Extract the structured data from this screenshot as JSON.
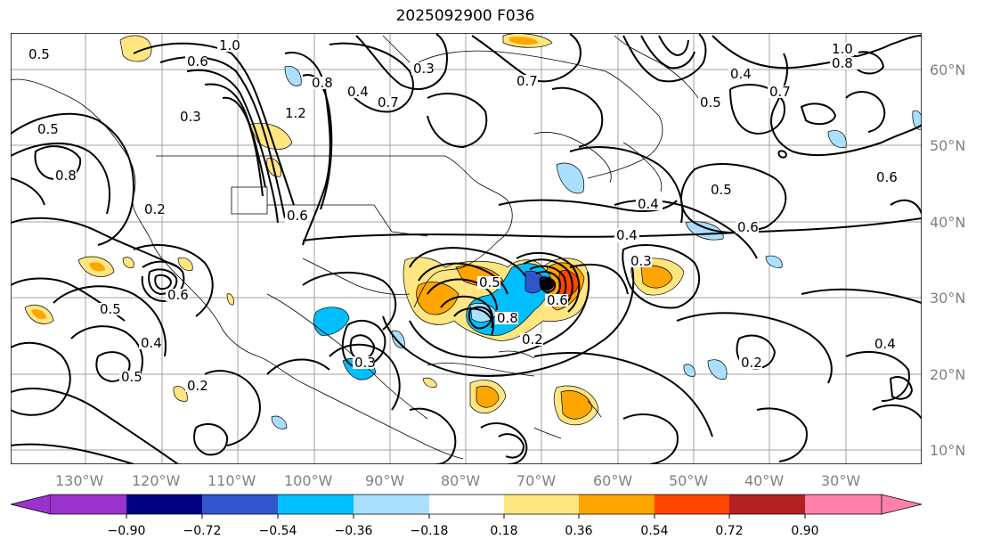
{
  "title": "2025092900 F036",
  "map": {
    "lon_labels": [
      "130°W",
      "120°W",
      "110°W",
      "100°W",
      "90°W",
      "80°W",
      "70°W",
      "60°W",
      "50°W",
      "40°W",
      "30°W"
    ],
    "lat_labels": [
      "60°N",
      "50°N",
      "40°N",
      "30°N",
      "20°N",
      "10°N"
    ],
    "contour_labels": [
      "0.5",
      "1.0",
      "0.6",
      "0.8",
      "0.7",
      "0.4",
      "0.3",
      "1.2",
      "0.6",
      "0.2",
      "0.4",
      "0.5",
      "0.6",
      "0.8",
      "0.5",
      "1.0",
      "0.8",
      "0.4",
      "0.5",
      "0.7",
      "0.3",
      "0.6",
      "0.2",
      "0.4",
      "0.2",
      "0.3",
      "0.6",
      "0.5",
      "0.4",
      "0.2",
      "0.5",
      "0.6",
      "0.3",
      "0.5",
      "0.7",
      "0.8",
      "0.4"
    ],
    "colors": {
      "neg_090": "#9933cc",
      "neg_072": "#000080",
      "neg_054": "#3355cc",
      "neg_036": "#00bfff",
      "neg_018": "#aadfff",
      "zero": "#ffffff",
      "pos_018": "#ffe680",
      "pos_036": "#ffa500",
      "pos_054": "#ff4500",
      "pos_072": "#b22222",
      "pos_090": "#ff80aa"
    }
  },
  "colorbar": {
    "ticks": [
      "−0.90",
      "−0.72",
      "−0.54",
      "−0.36",
      "−0.18",
      "0.18",
      "0.36",
      "0.54",
      "0.72",
      "0.90"
    ]
  }
}
